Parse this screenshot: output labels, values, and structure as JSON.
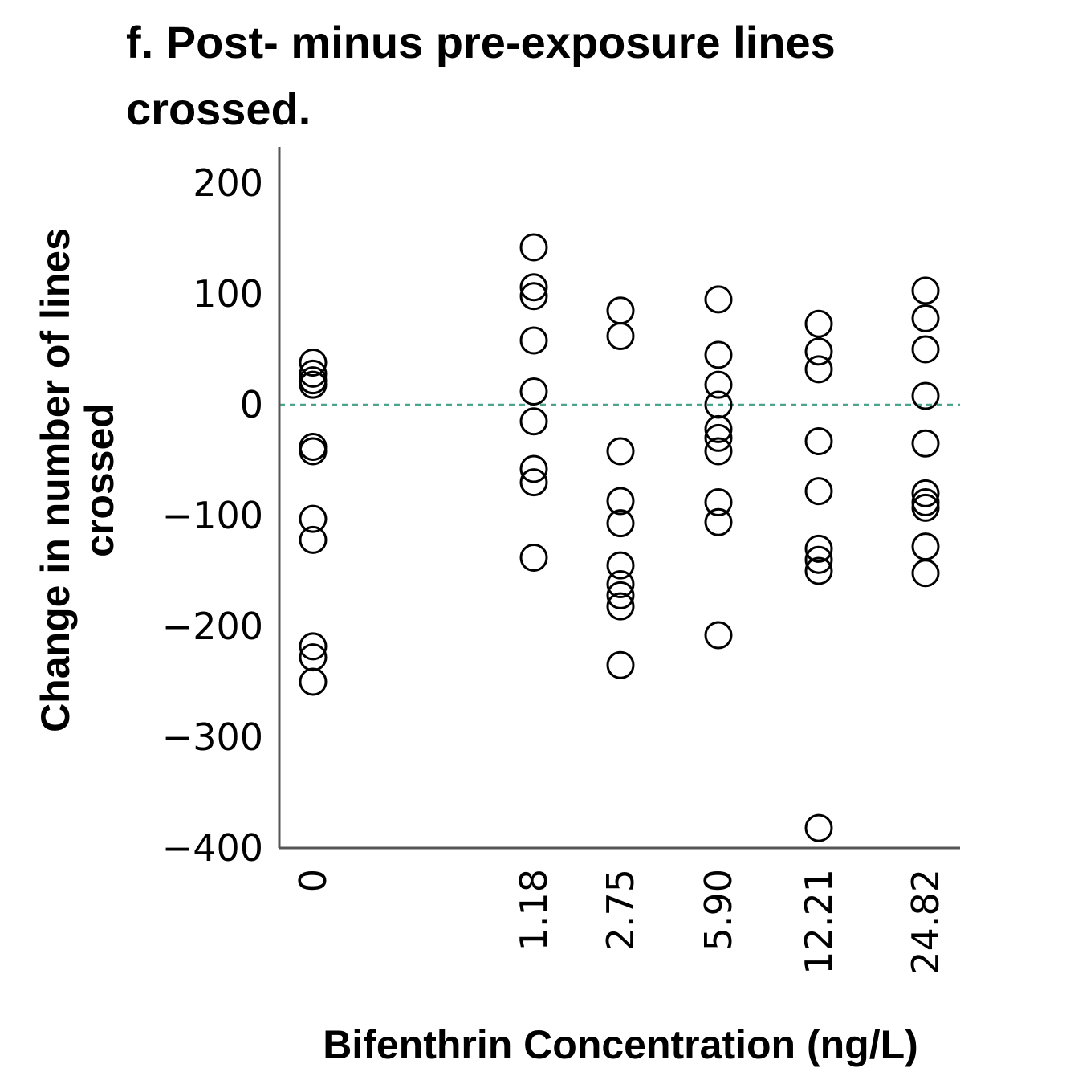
{
  "chart_data": {
    "type": "scatter",
    "title_lines": [
      "f. Post- minus pre-exposure lines",
      "crossed."
    ],
    "xlabel": "Bifenthrin Concentration (ng/L)",
    "ylabel_lines": [
      "Change in number of lines",
      "crossed"
    ],
    "ylim": [
      -400,
      230
    ],
    "yticks": [
      200,
      100,
      0,
      -100,
      -200,
      -300,
      -400
    ],
    "ytick_labels": [
      "200",
      "100",
      "0",
      "−100",
      "−200",
      "−300",
      "−400"
    ],
    "categories": [
      "0",
      "1.18",
      "2.75",
      "5.90",
      "12.21",
      "24.82"
    ],
    "reference_line": {
      "y": 0,
      "color": "#4aa58c",
      "style": "dashed"
    },
    "series": [
      {
        "values": [
          [
            38,
            28,
            22,
            18,
            -38,
            -42,
            -103,
            -122,
            -218,
            -228,
            -250
          ],
          [
            142,
            106,
            98,
            58,
            12,
            -15,
            -58,
            -70,
            -138
          ],
          [
            85,
            62,
            -42,
            -87,
            -107,
            -145,
            -162,
            -172,
            -182,
            -235
          ],
          [
            95,
            45,
            18,
            0,
            -22,
            -30,
            -42,
            -88,
            -106,
            -208
          ],
          [
            73,
            48,
            32,
            -33,
            -78,
            -130,
            -140,
            -150,
            -382
          ],
          [
            103,
            78,
            50,
            8,
            -35,
            -80,
            -88,
            -93,
            -128,
            -152
          ]
        ]
      }
    ]
  }
}
